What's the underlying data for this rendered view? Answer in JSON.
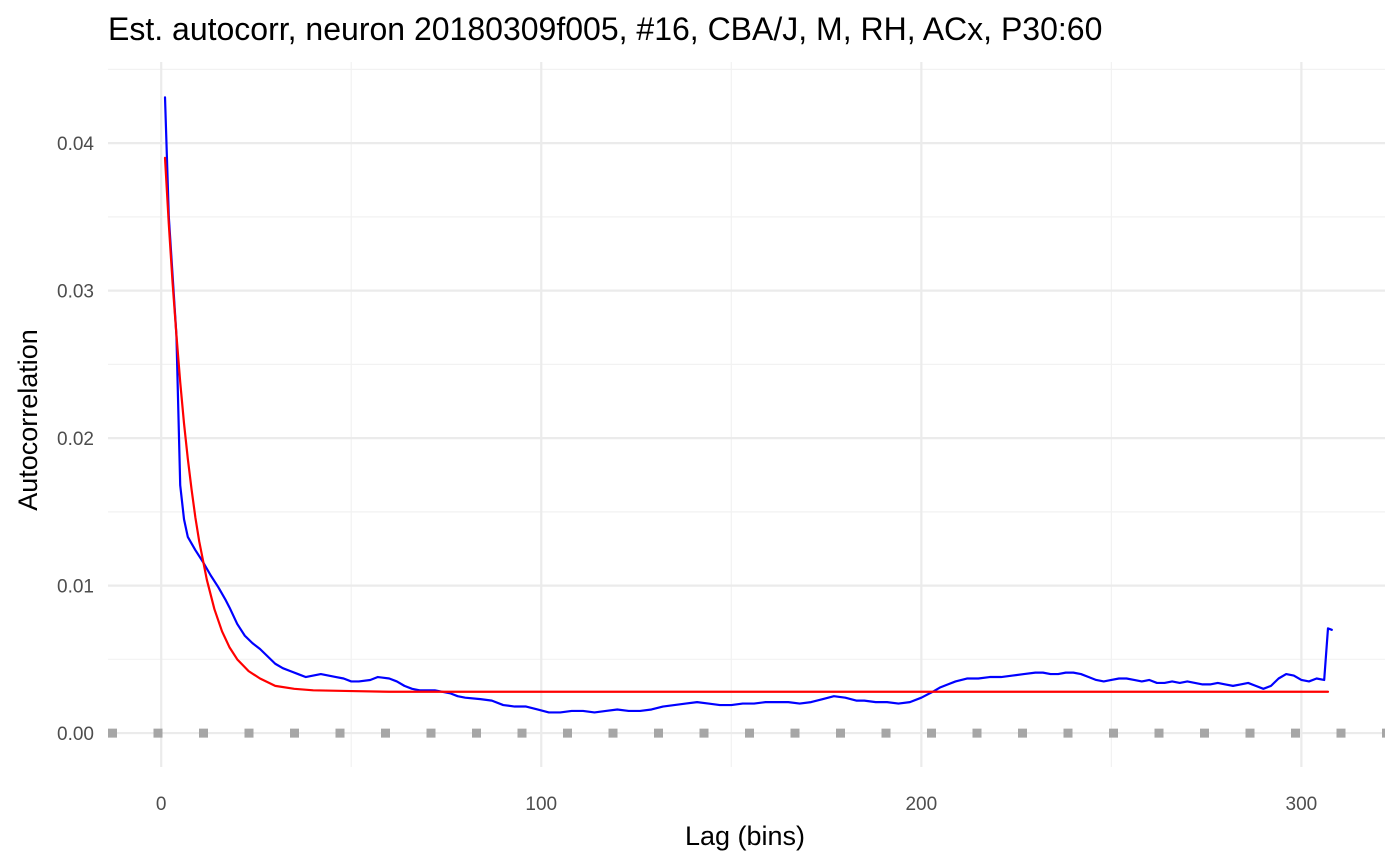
{
  "chart_data": {
    "type": "line",
    "title": "Est. autocorr, neuron 20180309f005, #16, CBA/J, M, RH, ACx, P30:60",
    "xlabel": "Lag (bins)",
    "ylabel": "Autocorrelation",
    "xlim": [
      -14,
      322
    ],
    "ylim": [
      -0.0023,
      0.0455
    ],
    "x_ticks": [
      0,
      100,
      200,
      300
    ],
    "x_tick_labels": [
      "0",
      "100",
      "200",
      "300"
    ],
    "y_ticks": [
      0,
      0.01,
      0.02,
      0.03,
      0.04
    ],
    "y_tick_labels": [
      "0.00",
      "0.01",
      "0.02",
      "0.03",
      "0.04"
    ],
    "grid": true,
    "legend": "none",
    "zero_line": {
      "y": 0,
      "style": "dotted",
      "color": "#a6a6a6"
    },
    "series": [
      {
        "color": "#0000ff",
        "points": [
          [
            1,
            0.0431
          ],
          [
            2,
            0.035
          ],
          [
            3,
            0.031
          ],
          [
            4,
            0.027
          ],
          [
            5,
            0.0168
          ],
          [
            6,
            0.0145
          ],
          [
            7,
            0.0133
          ],
          [
            9,
            0.0124
          ],
          [
            11,
            0.0116
          ],
          [
            13,
            0.0107
          ],
          [
            15,
            0.0099
          ],
          [
            17,
            0.009
          ],
          [
            18,
            0.0085
          ],
          [
            20,
            0.0074
          ],
          [
            22,
            0.0066
          ],
          [
            24,
            0.0061
          ],
          [
            26,
            0.0057
          ],
          [
            28,
            0.0052
          ],
          [
            30,
            0.0047
          ],
          [
            32,
            0.0044
          ],
          [
            34,
            0.0042
          ],
          [
            36,
            0.004
          ],
          [
            38,
            0.0038
          ],
          [
            40,
            0.0039
          ],
          [
            42,
            0.004
          ],
          [
            44,
            0.0039
          ],
          [
            46,
            0.0038
          ],
          [
            48,
            0.0037
          ],
          [
            50,
            0.0035
          ],
          [
            52,
            0.0035
          ],
          [
            55,
            0.0036
          ],
          [
            57,
            0.0038
          ],
          [
            60,
            0.0037
          ],
          [
            62,
            0.0035
          ],
          [
            64,
            0.0032
          ],
          [
            66,
            0.003
          ],
          [
            68,
            0.0029
          ],
          [
            72,
            0.0029
          ],
          [
            74,
            0.0028
          ],
          [
            76,
            0.0027
          ],
          [
            78,
            0.0025
          ],
          [
            80,
            0.0024
          ],
          [
            84,
            0.0023
          ],
          [
            87,
            0.0022
          ],
          [
            90,
            0.0019
          ],
          [
            93,
            0.0018
          ],
          [
            96,
            0.0018
          ],
          [
            99,
            0.0016
          ],
          [
            102,
            0.0014
          ],
          [
            105,
            0.0014
          ],
          [
            108,
            0.0015
          ],
          [
            111,
            0.0015
          ],
          [
            114,
            0.0014
          ],
          [
            117,
            0.0015
          ],
          [
            120,
            0.0016
          ],
          [
            123,
            0.0015
          ],
          [
            126,
            0.0015
          ],
          [
            129,
            0.0016
          ],
          [
            132,
            0.0018
          ],
          [
            135,
            0.0019
          ],
          [
            138,
            0.002
          ],
          [
            141,
            0.0021
          ],
          [
            144,
            0.002
          ],
          [
            147,
            0.0019
          ],
          [
            150,
            0.0019
          ],
          [
            153,
            0.002
          ],
          [
            156,
            0.002
          ],
          [
            159,
            0.0021
          ],
          [
            162,
            0.0021
          ],
          [
            165,
            0.0021
          ],
          [
            168,
            0.002
          ],
          [
            171,
            0.0021
          ],
          [
            174,
            0.0023
          ],
          [
            177,
            0.0025
          ],
          [
            180,
            0.0024
          ],
          [
            183,
            0.0022
          ],
          [
            185,
            0.0022
          ],
          [
            188,
            0.0021
          ],
          [
            191,
            0.0021
          ],
          [
            194,
            0.002
          ],
          [
            197,
            0.0021
          ],
          [
            200,
            0.0024
          ],
          [
            203,
            0.0028
          ],
          [
            205,
            0.0031
          ],
          [
            207,
            0.0033
          ],
          [
            209,
            0.0035
          ],
          [
            212,
            0.0037
          ],
          [
            215,
            0.0037
          ],
          [
            218,
            0.0038
          ],
          [
            221,
            0.0038
          ],
          [
            224,
            0.0039
          ],
          [
            227,
            0.004
          ],
          [
            230,
            0.0041
          ],
          [
            232,
            0.0041
          ],
          [
            234,
            0.004
          ],
          [
            236,
            0.004
          ],
          [
            238,
            0.0041
          ],
          [
            240,
            0.0041
          ],
          [
            242,
            0.004
          ],
          [
            244,
            0.0038
          ],
          [
            246,
            0.0036
          ],
          [
            248,
            0.0035
          ],
          [
            250,
            0.0036
          ],
          [
            252,
            0.0037
          ],
          [
            254,
            0.0037
          ],
          [
            256,
            0.0036
          ],
          [
            258,
            0.0035
          ],
          [
            260,
            0.0036
          ],
          [
            262,
            0.0034
          ],
          [
            264,
            0.0034
          ],
          [
            266,
            0.0035
          ],
          [
            268,
            0.0034
          ],
          [
            270,
            0.0035
          ],
          [
            272,
            0.0034
          ],
          [
            274,
            0.0033
          ],
          [
            276,
            0.0033
          ],
          [
            278,
            0.0034
          ],
          [
            280,
            0.0033
          ],
          [
            282,
            0.0032
          ],
          [
            284,
            0.0033
          ],
          [
            286,
            0.0034
          ],
          [
            288,
            0.0032
          ],
          [
            290,
            0.003
          ],
          [
            292,
            0.0032
          ],
          [
            294,
            0.0037
          ],
          [
            296,
            0.004
          ],
          [
            298,
            0.0039
          ],
          [
            300,
            0.0036
          ],
          [
            302,
            0.0035
          ],
          [
            304,
            0.0037
          ],
          [
            306,
            0.0036
          ],
          [
            307,
            0.0071
          ],
          [
            308,
            0.007
          ]
        ]
      },
      {
        "color": "#ff0000",
        "points": [
          [
            1,
            0.039
          ],
          [
            2,
            0.0345
          ],
          [
            3,
            0.0305
          ],
          [
            4,
            0.027
          ],
          [
            5,
            0.0238
          ],
          [
            6,
            0.021
          ],
          [
            7,
            0.0186
          ],
          [
            8,
            0.0165
          ],
          [
            9,
            0.0146
          ],
          [
            10,
            0.013
          ],
          [
            12,
            0.0104
          ],
          [
            14,
            0.0084
          ],
          [
            16,
            0.0069
          ],
          [
            18,
            0.0058
          ],
          [
            20,
            0.005
          ],
          [
            23,
            0.0042
          ],
          [
            26,
            0.0037
          ],
          [
            30,
            0.0032
          ],
          [
            35,
            0.003
          ],
          [
            40,
            0.0029
          ],
          [
            50,
            0.00285
          ],
          [
            60,
            0.0028
          ],
          [
            80,
            0.0028
          ],
          [
            100,
            0.0028
          ],
          [
            150,
            0.0028
          ],
          [
            200,
            0.0028
          ],
          [
            250,
            0.0028
          ],
          [
            300,
            0.0028
          ],
          [
            307,
            0.0028
          ]
        ]
      }
    ]
  }
}
